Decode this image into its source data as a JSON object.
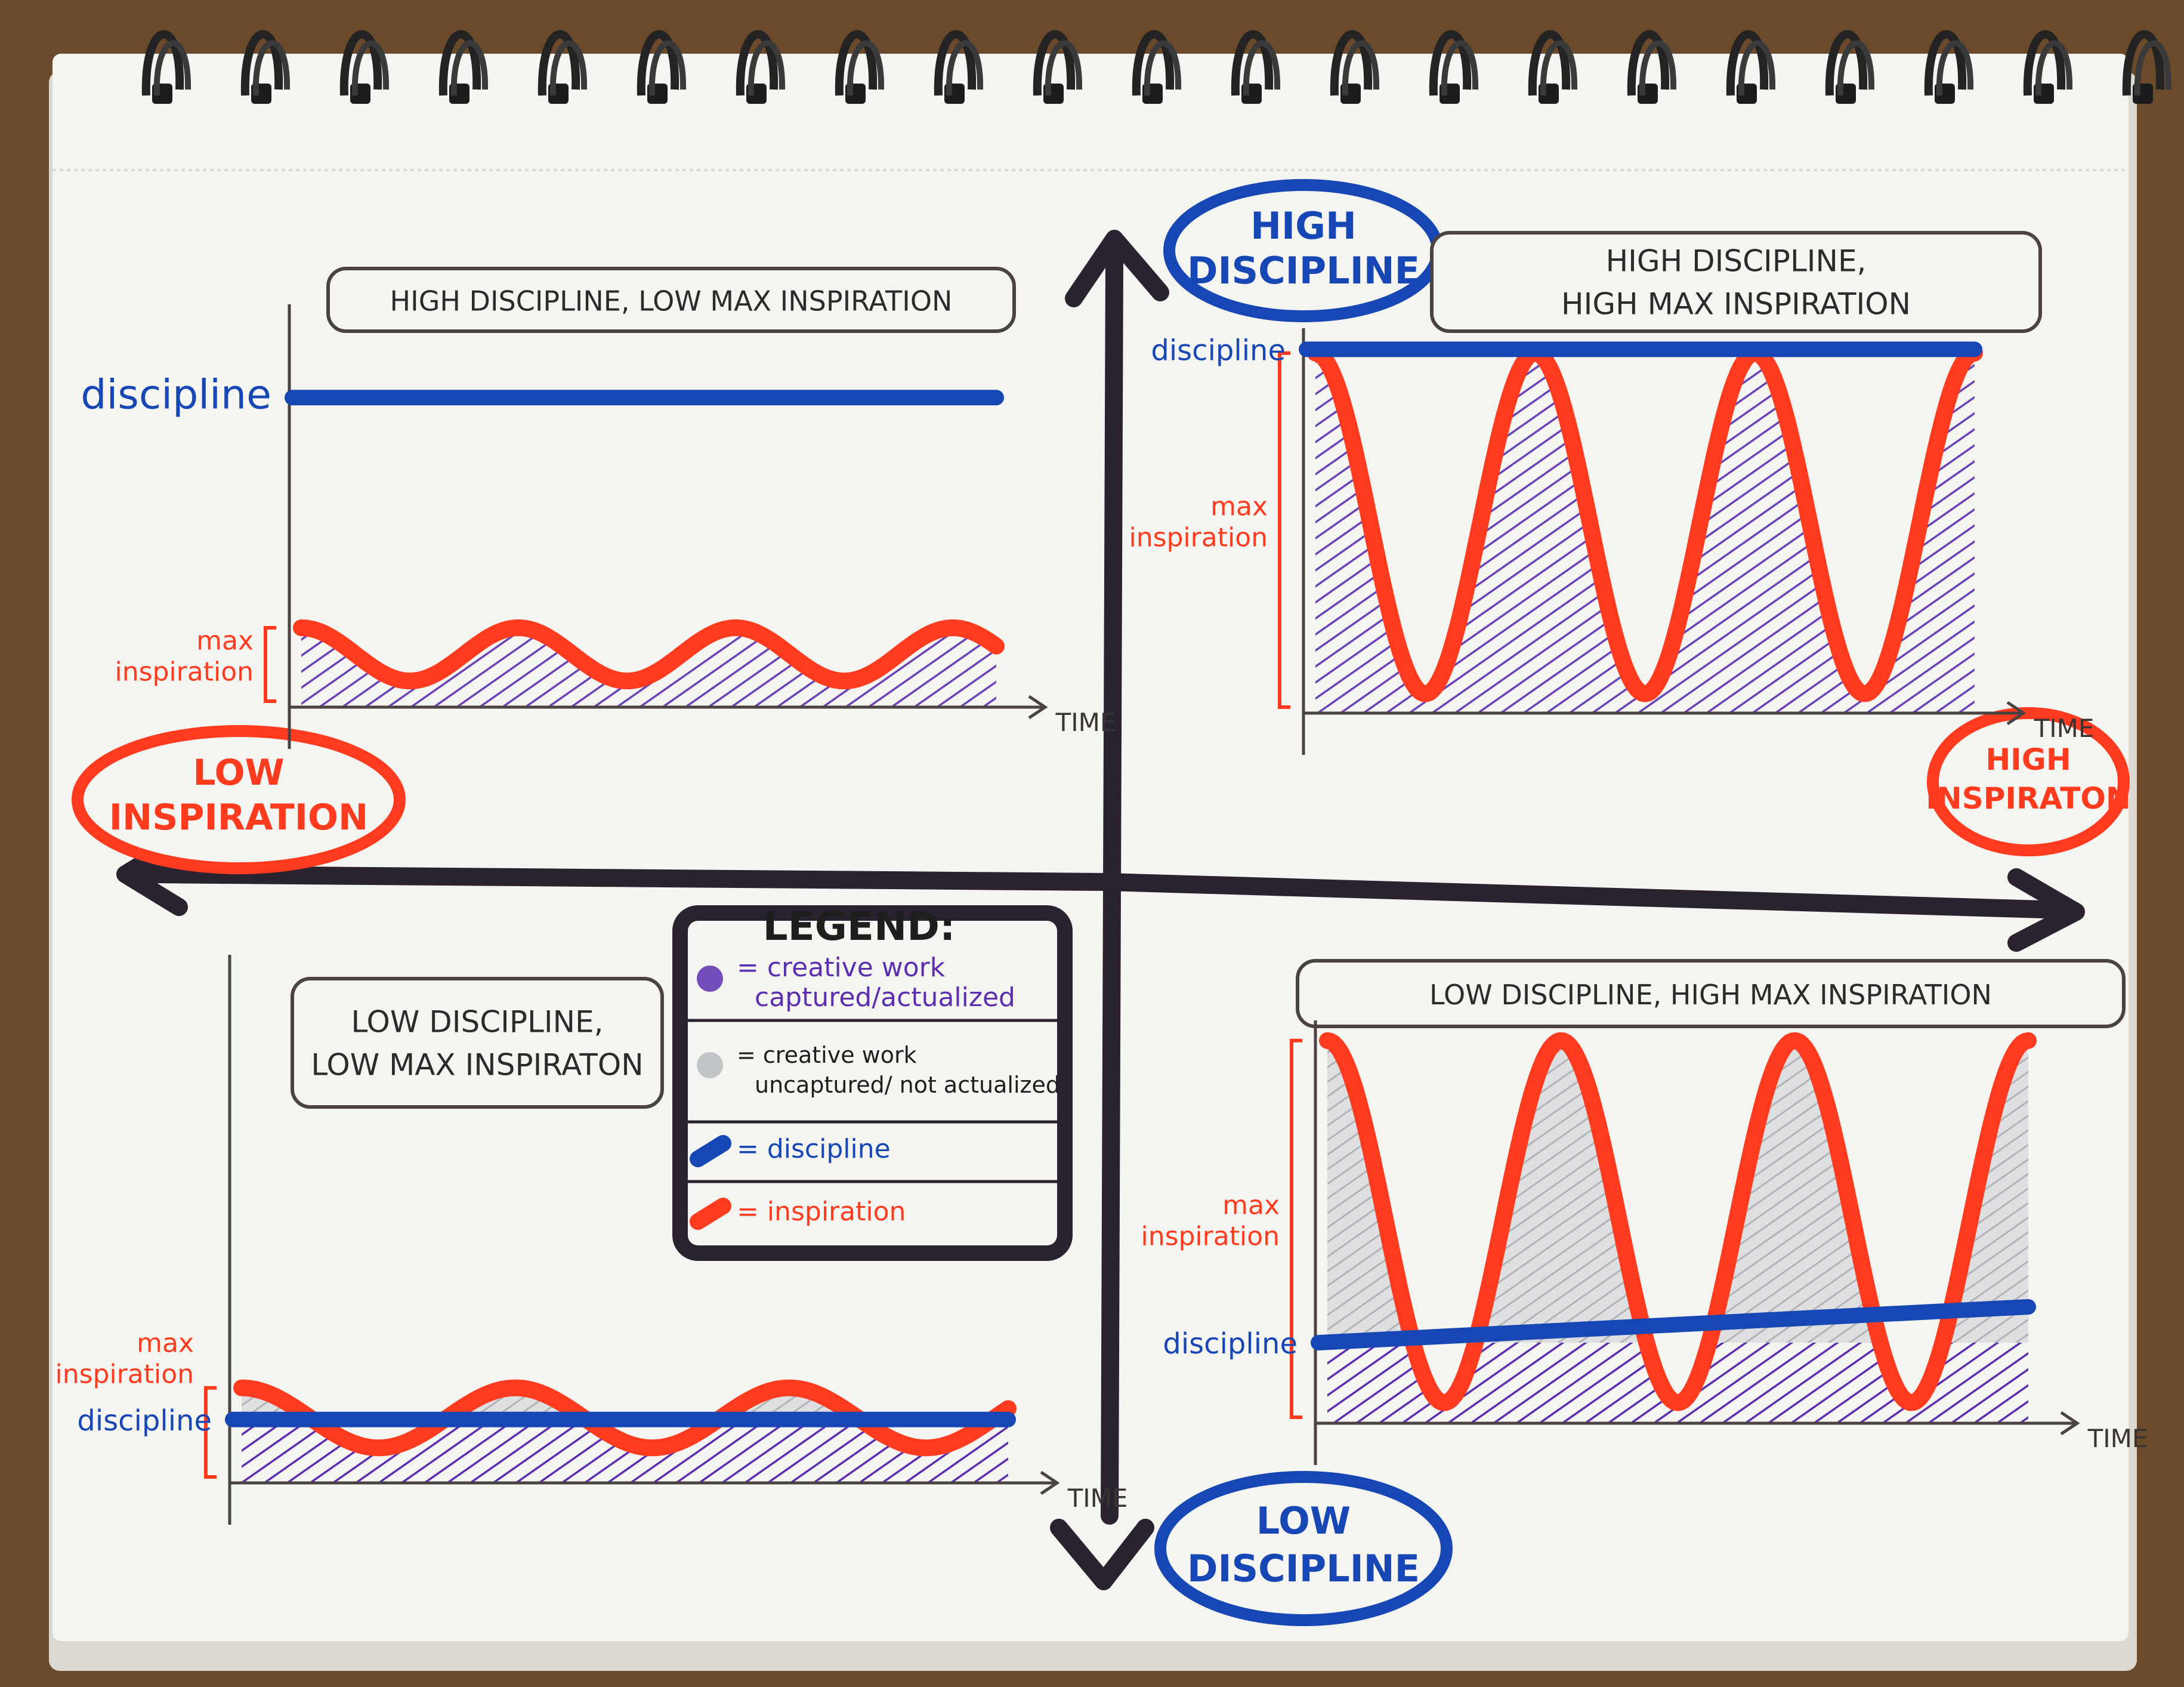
{
  "axes": {
    "vertical_top": "HIGH\nDISCIPLINE",
    "vertical_bottom": "LOW\nDISCIPLINE",
    "horizontal_left": "LOW\nINSPIRATION",
    "horizontal_right": "HIGH\nINSPIRATON"
  },
  "quadrants": {
    "top_left": {
      "title": "HIGH DISCIPLINE, LOW MAX INSPIRATION",
      "discipline_label": "discipline",
      "max_label": "max\ninspiration",
      "time_label": "TIME",
      "discipline_level": 0.78,
      "inspiration_amplitude": 0.2
    },
    "top_right": {
      "title": "HIGH DISCIPLINE,\nHIGH MAX INSPIRATION",
      "discipline_label": "discipline",
      "max_label": "max\ninspiration",
      "time_label": "TIME",
      "discipline_level": 0.96,
      "inspiration_amplitude": 0.95
    },
    "bottom_left": {
      "title": "LOW DISCIPLINE,\nLOW MAX INSPIRATON",
      "discipline_label": "discipline",
      "max_label": "max\ninspiration",
      "time_label": "TIME",
      "discipline_level": 0.12,
      "inspiration_amplitude": 0.18
    },
    "bottom_right": {
      "title": "LOW DISCIPLINE, HIGH MAX INSPIRATION",
      "discipline_label": "discipline",
      "max_label": "max\ninspiration",
      "time_label": "TIME",
      "discipline_level": 0.2,
      "inspiration_amplitude": 0.95
    }
  },
  "legend": {
    "title": "LEGEND:",
    "items": [
      {
        "text": "= creative work\ncaptured/actualized",
        "swatch": "#5b2fb0"
      },
      {
        "text": "= creative work\nuncaptured/ not actualized",
        "swatch": "#b9bcc0"
      },
      {
        "text": "= discipline",
        "swatch": "#1746b5"
      },
      {
        "text": "= inspiration",
        "swatch": "#ff3b1f"
      }
    ]
  },
  "colors": {
    "discipline": "#1746b5",
    "inspiration": "#ff3b1f",
    "captured": "#5b2fb0",
    "uncaptured": "#b9bcc0",
    "axis": "#2b2230",
    "paper": "#f4f4f1"
  }
}
